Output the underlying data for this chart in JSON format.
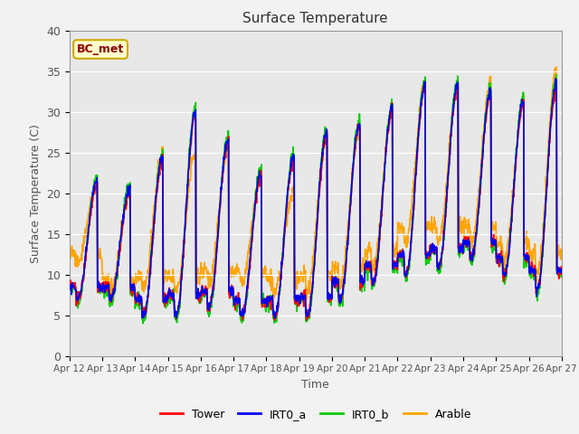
{
  "title": "Surface Temperature",
  "xlabel": "Time",
  "ylabel": "Surface Temperature (C)",
  "ylim": [
    0,
    40
  ],
  "background_color": "#f2f2f2",
  "plot_bg_color": "#e8e8e8",
  "annotation_text": "BC_met",
  "annotation_color": "#8b0000",
  "annotation_bg": "#ffffcc",
  "annotation_edge": "#ccaa00",
  "series": {
    "Tower": {
      "color": "#ff0000",
      "lw": 1.2
    },
    "IRT0_a": {
      "color": "#0000ee",
      "lw": 1.2
    },
    "IRT0_b": {
      "color": "#00cc00",
      "lw": 1.2
    },
    "Arable": {
      "color": "#ffa500",
      "lw": 1.2
    }
  },
  "xtick_labels": [
    "Apr 12",
    "Apr 13",
    "Apr 14",
    "Apr 15",
    "Apr 16",
    "Apr 17",
    "Apr 18",
    "Apr 19",
    "Apr 20",
    "Apr 21",
    "Apr 22",
    "Apr 23",
    "Apr 24",
    "Apr 25",
    "Apr 26",
    "Apr 27"
  ],
  "ytick_labels": [
    0,
    5,
    10,
    15,
    20,
    25,
    30,
    35,
    40
  ],
  "legend_labels": [
    "Tower",
    "IRT0_a",
    "IRT0_b",
    "Arable"
  ]
}
